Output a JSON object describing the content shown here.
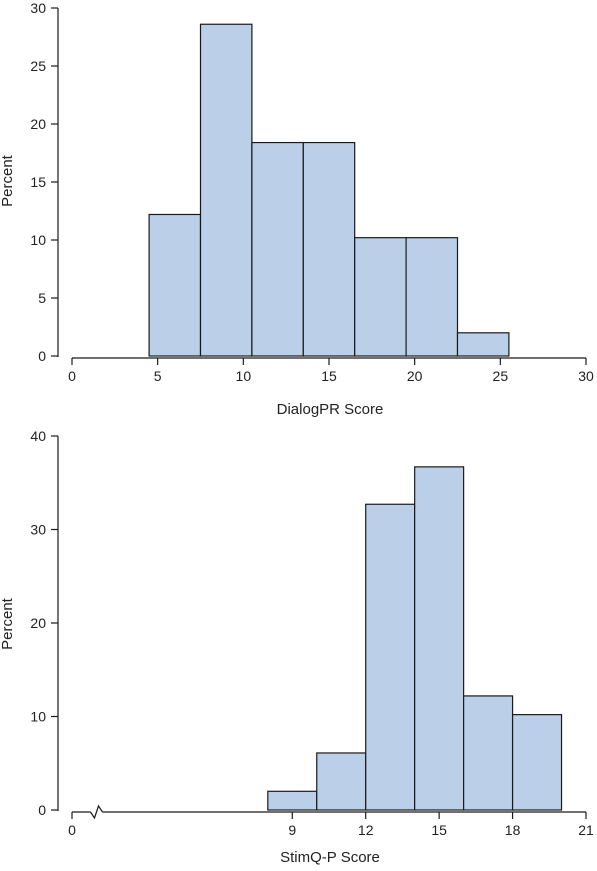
{
  "chart_data": [
    {
      "type": "bar",
      "subtype": "histogram",
      "xlabel": "DialogPR Score",
      "ylabel": "Percent",
      "xlim": [
        0,
        30
      ],
      "ylim": [
        0,
        30
      ],
      "xticks": [
        0,
        5,
        10,
        15,
        20,
        25,
        30
      ],
      "yticks": [
        0,
        5,
        10,
        15,
        20,
        25,
        30
      ],
      "bin_edges": [
        4.5,
        7.5,
        10.5,
        13.5,
        16.5,
        19.5,
        22.5,
        25.5
      ],
      "values": [
        12.2,
        28.6,
        18.4,
        18.4,
        10.2,
        10.2,
        2.0
      ],
      "bar_color": "#bccfe8",
      "edge_color": "#1a1a1a",
      "grid": false
    },
    {
      "type": "bar",
      "subtype": "histogram",
      "xlabel": "StimQ-P Score",
      "ylabel": "Percent",
      "xlim": [
        0,
        21
      ],
      "ylim": [
        0,
        40
      ],
      "xticks": [
        0,
        9,
        12,
        15,
        18,
        21
      ],
      "yticks": [
        0,
        10,
        20,
        30,
        40
      ],
      "axis_break": true,
      "bin_edges": [
        8,
        10,
        12,
        14,
        16,
        18,
        20
      ],
      "values": [
        2.0,
        6.1,
        32.7,
        36.7,
        12.2,
        10.2
      ],
      "bar_color": "#bccfe8",
      "edge_color": "#1a1a1a",
      "grid": false
    }
  ]
}
